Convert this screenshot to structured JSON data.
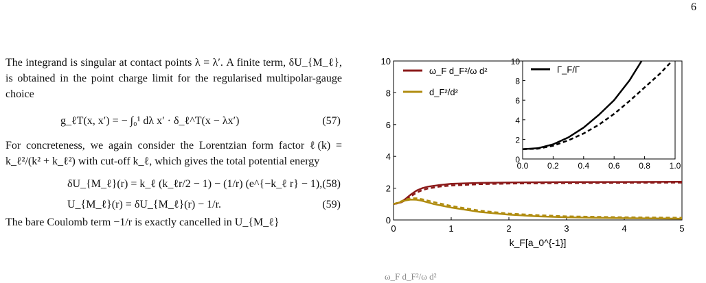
{
  "page": {
    "number": "6"
  },
  "text": {
    "para1": "The integrand is singular at contact points λ = λ′. A finite term, δU_{M_ℓ}, is obtained in the point charge limit for the regularised multipolar-gauge choice",
    "eq57": "g_ℓT(x, x′) = − ∫₀¹ dλ x′ · δ_ℓ^T(x − λx′)",
    "eq57_num": "(57)",
    "para2": "For concreteness, we again consider the Lorentzian form factor ℓ(k) = k_ℓ²/(k² + k_ℓ²) with cut-off k_ℓ, which gives the total potential energy",
    "eq58": "δU_{M_ℓ}(r) = k_ℓ (k_ℓr/2 − 1) − (1/r) (e^{−k_ℓ r} − 1),",
    "eq58_num": "(58)",
    "eq59": "U_{M_ℓ}(r) = δU_{M_ℓ}(r) − 1/r.",
    "eq59_num": "(59)",
    "para3": "The bare Coulomb term −1/r is exactly cancelled in U_{M_ℓ}"
  },
  "figure": {
    "caption_fragment": "ω_F d_F²/ω d²"
  },
  "chart_data": [
    {
      "type": "line",
      "xlabel": "k_F[a_0^{-1}]",
      "ylabel": "",
      "xlim": [
        0,
        5
      ],
      "ylim": [
        0,
        10
      ],
      "xticks": [
        "0",
        "1",
        "2",
        "3",
        "4",
        "5"
      ],
      "yticks": [
        "0",
        "2",
        "4",
        "6",
        "8",
        "10"
      ],
      "legend_position": "top-left",
      "series": [
        {
          "name": "ω_F d_F²/ω d²",
          "color": "#8b1a1a",
          "style": "solid",
          "x": [
            0,
            0.1,
            0.2,
            0.3,
            0.4,
            0.5,
            0.6,
            0.8,
            1.0,
            1.5,
            2.0,
            3.0,
            4.0,
            5.0
          ],
          "y": [
            1.0,
            1.08,
            1.3,
            1.6,
            1.85,
            2.0,
            2.1,
            2.2,
            2.27,
            2.33,
            2.36,
            2.38,
            2.39,
            2.4
          ]
        },
        {
          "name": "",
          "color": "#8b1a1a",
          "style": "dashed",
          "x": [
            0,
            0.1,
            0.2,
            0.3,
            0.4,
            0.5,
            0.6,
            0.8,
            1.0,
            1.5,
            2.0,
            3.0,
            4.0,
            5.0
          ],
          "y": [
            1.0,
            1.06,
            1.22,
            1.48,
            1.72,
            1.88,
            1.98,
            2.1,
            2.17,
            2.25,
            2.29,
            2.32,
            2.34,
            2.35
          ]
        },
        {
          "name": "d_F²/d²",
          "color": "#b08c10",
          "style": "solid",
          "x": [
            0,
            0.1,
            0.2,
            0.3,
            0.4,
            0.5,
            0.7,
            1.0,
            1.5,
            2.0,
            2.5,
            3.0,
            4.0,
            5.0
          ],
          "y": [
            1.0,
            1.1,
            1.22,
            1.28,
            1.27,
            1.2,
            1.0,
            0.78,
            0.5,
            0.33,
            0.23,
            0.17,
            0.11,
            0.08
          ]
        },
        {
          "name": "",
          "color": "#b08c10",
          "style": "dashed",
          "x": [
            0,
            0.1,
            0.2,
            0.3,
            0.4,
            0.5,
            0.7,
            1.0,
            1.5,
            2.0,
            2.5,
            3.0,
            4.0,
            5.0
          ],
          "y": [
            1.0,
            1.12,
            1.28,
            1.36,
            1.36,
            1.3,
            1.12,
            0.88,
            0.58,
            0.4,
            0.3,
            0.23,
            0.17,
            0.14
          ]
        }
      ]
    },
    {
      "type": "line",
      "xlim": [
        0,
        1
      ],
      "ylim": [
        0,
        10
      ],
      "xticks": [
        "0.0",
        "0.2",
        "0.4",
        "0.6",
        "0.8",
        "1.0"
      ],
      "yticks": [
        "0",
        "2",
        "4",
        "6",
        "8",
        "10"
      ],
      "legend_position": "top-left",
      "series": [
        {
          "name": "Γ_F/Γ",
          "color": "#000000",
          "style": "solid",
          "x": [
            0,
            0.1,
            0.2,
            0.3,
            0.4,
            0.5,
            0.6,
            0.7,
            0.78
          ],
          "y": [
            1.0,
            1.1,
            1.5,
            2.2,
            3.2,
            4.5,
            6.0,
            8.0,
            10.0
          ]
        },
        {
          "name": "",
          "color": "#000000",
          "style": "dashed",
          "x": [
            0,
            0.1,
            0.2,
            0.3,
            0.4,
            0.5,
            0.6,
            0.7,
            0.8,
            0.9,
            0.98
          ],
          "y": [
            1.0,
            1.05,
            1.35,
            1.9,
            2.6,
            3.5,
            4.6,
            5.9,
            7.3,
            8.7,
            10.0
          ]
        }
      ]
    }
  ]
}
